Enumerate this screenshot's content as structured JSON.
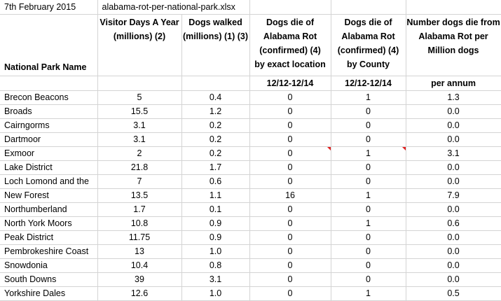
{
  "top": {
    "date": "7th February 2015",
    "filename": "alabama-rot-per-national-park.xlsx"
  },
  "headers": {
    "name": "National Park Name",
    "visitors": "Visitor Days A Year (millions) (2)",
    "dogs_walked": "Dogs walked (millions) (1) (3)",
    "dogs_die_loc": "Dogs die of Alabama Rot (confirmed) (4)",
    "dogs_die_county": "Dogs die of Alabama Rot (confirmed) (4)",
    "per_million": "Number dogs die from Alabama Rot per Million dogs"
  },
  "subheaders": {
    "loc_basis": "by exact location",
    "county_basis": "by County",
    "loc_period": "12/12-12/14",
    "county_period": "12/12-12/14",
    "per_annum": "per annum"
  },
  "rows": [
    {
      "name": "Brecon Beacons",
      "visitors": "5",
      "dogs": "0.4",
      "loc": "0",
      "county": "1",
      "rate": "1.3"
    },
    {
      "name": "Broads",
      "visitors": "15.5",
      "dogs": "1.2",
      "loc": "0",
      "county": "0",
      "rate": "0.0"
    },
    {
      "name": "Cairngorms",
      "visitors": "3.1",
      "dogs": "0.2",
      "loc": "0",
      "county": "0",
      "rate": "0.0"
    },
    {
      "name": "Dartmoor",
      "visitors": "3.1",
      "dogs": "0.2",
      "loc": "0",
      "county": "0",
      "rate": "0.0"
    },
    {
      "name": "Exmoor",
      "visitors": "2",
      "dogs": "0.2",
      "loc": "0",
      "county": "1",
      "rate": "3.1"
    },
    {
      "name": "Lake District",
      "visitors": "21.8",
      "dogs": "1.7",
      "loc": "0",
      "county": "0",
      "rate": "0.0"
    },
    {
      "name": "Loch Lomond and the",
      "visitors": "7",
      "dogs": "0.6",
      "loc": "0",
      "county": "0",
      "rate": "0.0"
    },
    {
      "name": "New Forest",
      "visitors": "13.5",
      "dogs": "1.1",
      "loc": "16",
      "county": "1",
      "rate": "7.9"
    },
    {
      "name": "Northumberland",
      "visitors": "1.7",
      "dogs": "0.1",
      "loc": "0",
      "county": "0",
      "rate": "0.0"
    },
    {
      "name": "North York Moors",
      "visitors": "10.8",
      "dogs": "0.9",
      "loc": "0",
      "county": "1",
      "rate": "0.6"
    },
    {
      "name": "Peak District",
      "visitors": "11.75",
      "dogs": "0.9",
      "loc": "0",
      "county": "0",
      "rate": "0.0"
    },
    {
      "name": "Pembrokeshire Coast",
      "visitors": "13",
      "dogs": "1.0",
      "loc": "0",
      "county": "0",
      "rate": "0.0"
    },
    {
      "name": "Snowdonia",
      "visitors": "10.4",
      "dogs": "0.8",
      "loc": "0",
      "county": "0",
      "rate": "0.0"
    },
    {
      "name": "South Downs",
      "visitors": "39",
      "dogs": "3.1",
      "loc": "0",
      "county": "0",
      "rate": "0.0"
    },
    {
      "name": "Yorkshire Dales",
      "visitors": "12.6",
      "dogs": "1.0",
      "loc": "0",
      "county": "1",
      "rate": "0.5"
    }
  ],
  "colors": {
    "gridline": "#d4d4d4",
    "comment_indicator": "#e02020"
  }
}
